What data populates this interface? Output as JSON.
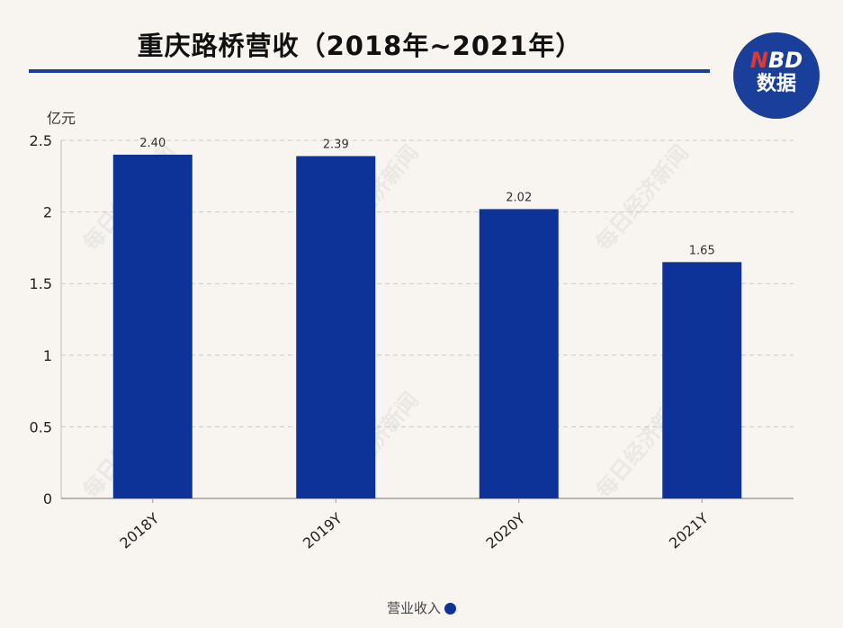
{
  "title": "重庆路桥营收（2018年~2021年）",
  "logo": {
    "accent_text": "N",
    "top_text": "BD",
    "bottom_text": "数据"
  },
  "unit_label": "亿元",
  "chart_data": {
    "type": "bar",
    "categories": [
      "2018Y",
      "2019Y",
      "2020Y",
      "2021Y"
    ],
    "series": [
      {
        "name": "营业收入",
        "values": [
          2.4,
          2.39,
          2.02,
          1.65
        ]
      }
    ],
    "data_labels": [
      "2.40",
      "2.39",
      "2.02",
      "1.65"
    ],
    "ylabel": "亿元",
    "ylim": [
      0,
      2.5
    ],
    "yticks": [
      0,
      0.5,
      1,
      1.5,
      2,
      2.5
    ],
    "ytick_labels": [
      "0",
      "0.5",
      "1",
      "1.5",
      "2",
      "2.5"
    ],
    "grid": true,
    "legend_placement": "bottom-center",
    "bar_color": "#0d3399"
  },
  "watermark": "每日经济新闻"
}
